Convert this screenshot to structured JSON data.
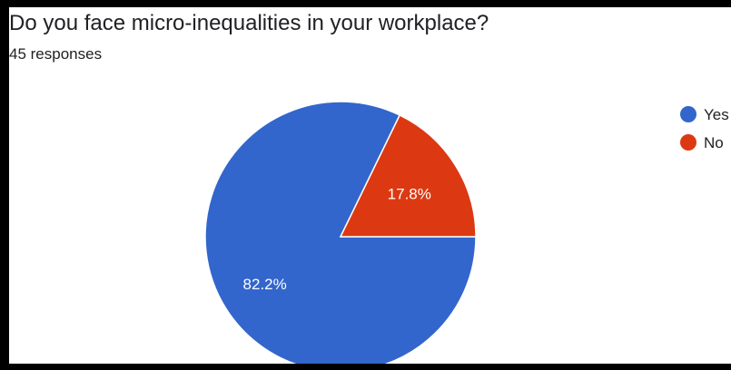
{
  "title": "Do you face micro-inequalities in your workplace?",
  "subtitle": "45 responses",
  "chart_data": {
    "type": "pie",
    "title": "Do you face micro-inequalities in your workplace?",
    "total_responses": 45,
    "categories": [
      "Yes",
      "No"
    ],
    "values": [
      82.2,
      17.8
    ],
    "labels": [
      "82.2%",
      "17.8%"
    ],
    "colors": [
      "#3366cc",
      "#dc3912"
    ],
    "legend_position": "right"
  }
}
